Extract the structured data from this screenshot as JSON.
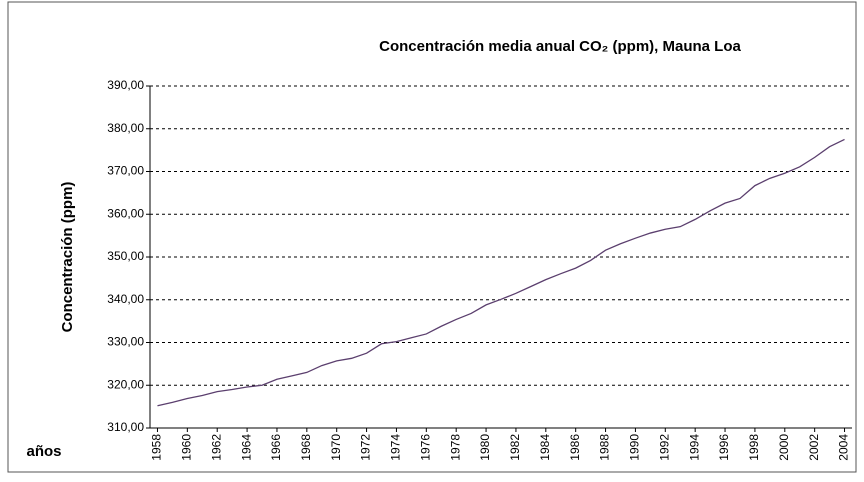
{
  "chart_data": {
    "type": "line",
    "title": "Concentración media anual CO₂ (ppm), Mauna Loa",
    "y_label": "Concentración (ppm)",
    "x_label": "años",
    "x": [
      1958,
      1959,
      1960,
      1961,
      1962,
      1963,
      1964,
      1965,
      1966,
      1967,
      1968,
      1969,
      1970,
      1971,
      1972,
      1973,
      1974,
      1975,
      1976,
      1977,
      1978,
      1979,
      1980,
      1981,
      1982,
      1983,
      1984,
      1985,
      1986,
      1987,
      1988,
      1989,
      1990,
      1991,
      1992,
      1993,
      1994,
      1995,
      1996,
      1997,
      1998,
      1999,
      2000,
      2001,
      2002,
      2003,
      2004
    ],
    "values": [
      315.2,
      316.0,
      316.9,
      317.6,
      318.5,
      319.0,
      319.6,
      320.0,
      321.4,
      322.2,
      323.0,
      324.6,
      325.7,
      326.3,
      327.5,
      329.7,
      330.2,
      331.1,
      332.0,
      333.8,
      335.4,
      336.8,
      338.8,
      340.1,
      341.5,
      343.1,
      344.7,
      346.1,
      347.4,
      349.2,
      351.6,
      353.1,
      354.4,
      355.6,
      356.5,
      357.1,
      358.8,
      360.8,
      362.6,
      363.7,
      366.7,
      368.4,
      369.6,
      371.1,
      373.3,
      375.8,
      377.5
    ],
    "color": "#5b3f6e",
    "xlim": [
      1957.5,
      2004.5
    ],
    "xticks": [
      1958,
      1960,
      1962,
      1964,
      1966,
      1968,
      1970,
      1972,
      1974,
      1976,
      1978,
      1980,
      1982,
      1984,
      1986,
      1988,
      1990,
      1992,
      1994,
      1996,
      1998,
      2000,
      2002,
      2004
    ],
    "ylim": [
      310,
      390
    ],
    "yticks": [
      {
        "value": 310,
        "label": "310,00"
      },
      {
        "value": 320,
        "label": "320,00"
      },
      {
        "value": 330,
        "label": "330,00"
      },
      {
        "value": 340,
        "label": "340,00"
      },
      {
        "value": 350,
        "label": "350,00"
      },
      {
        "value": 360,
        "label": "360,00"
      },
      {
        "value": 370,
        "label": "370,00"
      },
      {
        "value": 380,
        "label": "380,00"
      },
      {
        "value": 390,
        "label": "390,00"
      }
    ],
    "grid": true
  }
}
